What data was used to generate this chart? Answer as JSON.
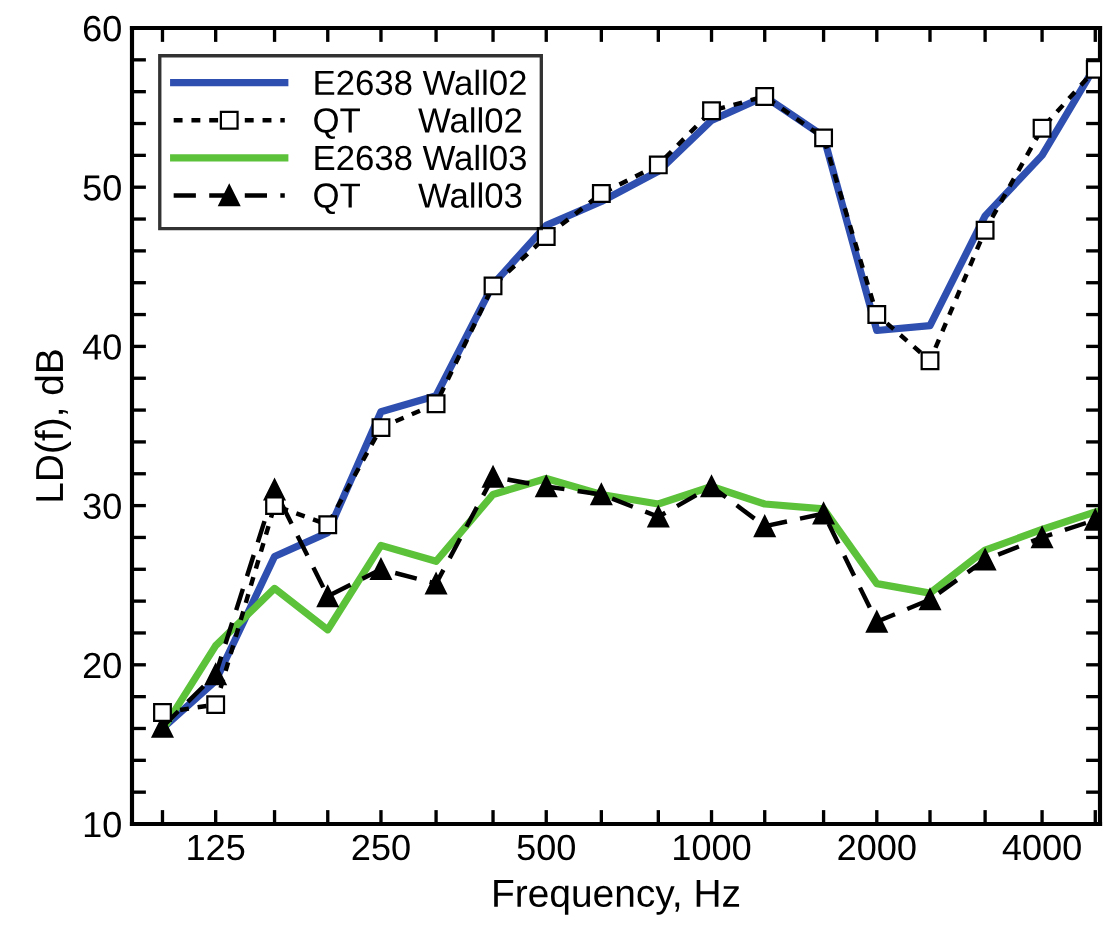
{
  "chart_data": {
    "type": "line",
    "xlabel": "Frequency, Hz",
    "ylabel": "LD(f), dB",
    "log": "x",
    "x": [
      100,
      125,
      160,
      200,
      250,
      315,
      400,
      500,
      630,
      800,
      1000,
      1250,
      1600,
      2000,
      2500,
      3150,
      4000,
      5000
    ],
    "series": [
      {
        "name": "E2638 Wall02",
        "color": "#2f4fb0",
        "marker": "none",
        "line_style": "solid",
        "values": [
          16,
          19,
          26.8,
          28.3,
          35.9,
          36.9,
          43.9,
          47.6,
          49.1,
          51,
          54.2,
          55.7,
          53.2,
          41,
          41.3,
          48.2,
          52,
          57.6
        ]
      },
      {
        "name": "QT      Wall02",
        "color": "#000000",
        "marker": "square",
        "line_style": "dotted",
        "values": [
          17,
          17.5,
          30,
          28.8,
          34.9,
          36.4,
          43.8,
          46.9,
          49.6,
          51.4,
          54.8,
          55.7,
          53.1,
          42,
          39.1,
          47.3,
          53.7,
          57.4
        ]
      },
      {
        "name": "E2638 Wall03",
        "color": "#5cc23a",
        "marker": "none",
        "line_style": "solid",
        "values": [
          15.9,
          21.2,
          24.8,
          22.2,
          27.5,
          26.5,
          30.7,
          31.7,
          30.7,
          30.1,
          31.2,
          30.1,
          29.8,
          25.1,
          24.5,
          27.2,
          28.5,
          29.6
        ]
      },
      {
        "name": "QT      Wall03",
        "color": "#000000",
        "marker": "triangle",
        "line_style": "dashed",
        "values": [
          16.1,
          19.4,
          31,
          24.3,
          26,
          25.1,
          31.8,
          31.2,
          30.7,
          29.3,
          31.2,
          28.7,
          29.5,
          22.7,
          24.1,
          26.6,
          28,
          29.1
        ]
      }
    ],
    "xlim": [
      88,
      5100
    ],
    "xticks": [
      {
        "value": 100,
        "label": null
      },
      125,
      {
        "value": 160,
        "label": null
      },
      {
        "value": 200,
        "label": null
      },
      250,
      {
        "value": 315,
        "label": null
      },
      {
        "value": 400,
        "label": null
      },
      500,
      {
        "value": 630,
        "label": null
      },
      {
        "value": 800,
        "label": null
      },
      1000,
      {
        "value": 1250,
        "label": null
      },
      {
        "value": 1600,
        "label": null
      },
      2000,
      {
        "value": 2500,
        "label": null
      },
      {
        "value": 3150,
        "label": null
      },
      4000,
      {
        "value": 5000,
        "label": null
      }
    ],
    "ylim": [
      10,
      60
    ],
    "yticks": [
      10,
      {
        "value": 12,
        "label": null
      },
      {
        "value": 14,
        "label": null
      },
      {
        "value": 16,
        "label": null
      },
      {
        "value": 18,
        "label": null
      },
      20,
      {
        "value": 22,
        "label": null
      },
      {
        "value": 24,
        "label": null
      },
      {
        "value": 26,
        "label": null
      },
      {
        "value": 28,
        "label": null
      },
      30,
      {
        "value": 32,
        "label": null
      },
      {
        "value": 34,
        "label": null
      },
      {
        "value": 36,
        "label": null
      },
      {
        "value": 38,
        "label": null
      },
      40,
      {
        "value": 42,
        "label": null
      },
      {
        "value": 44,
        "label": null
      },
      {
        "value": 46,
        "label": null
      },
      {
        "value": 48,
        "label": null
      },
      50,
      {
        "value": 52,
        "label": null
      },
      {
        "value": 54,
        "label": null
      },
      {
        "value": 56,
        "label": null
      },
      {
        "value": 58,
        "label": null
      },
      60
    ],
    "grid": false,
    "legend": "top left"
  }
}
